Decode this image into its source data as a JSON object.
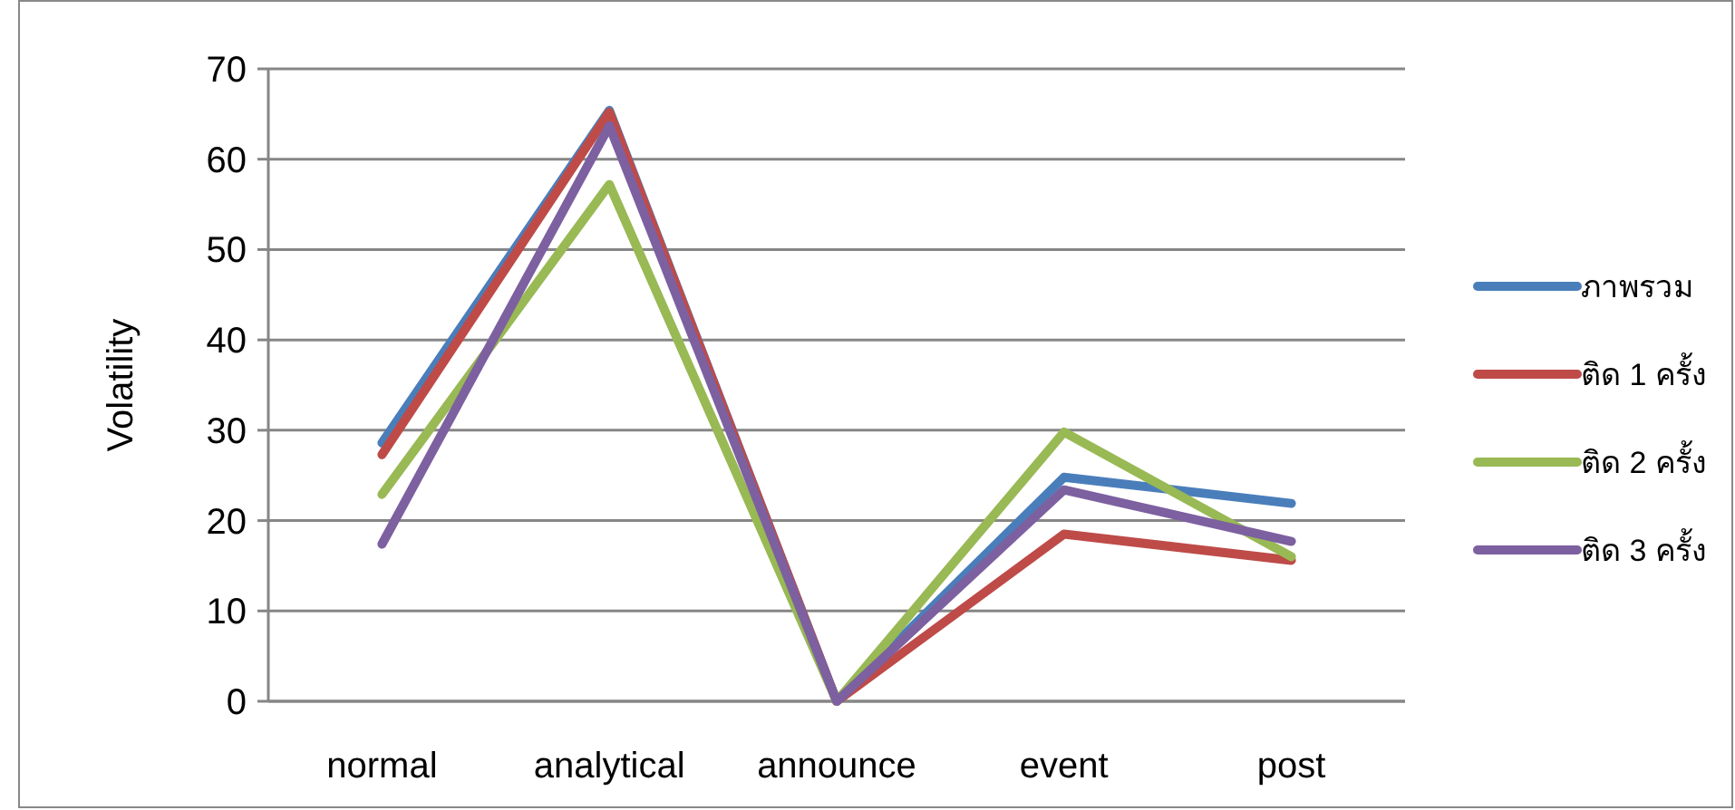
{
  "chart_data": {
    "type": "line",
    "ylabel": "Volatility",
    "categories": [
      "normal",
      "analytical",
      "announce",
      "event",
      "post"
    ],
    "series": [
      {
        "name": "ภาพรวม",
        "color": "#4a7ebb",
        "values": [
          28.6,
          65.4,
          0,
          24.8,
          21.9
        ]
      },
      {
        "name": "ติด 1 ครั้ง",
        "color": "#be4b48",
        "values": [
          27.3,
          65.2,
          0,
          18.5,
          15.6
        ]
      },
      {
        "name": "ติด 2 ครั้ง",
        "color": "#98b954",
        "values": [
          22.9,
          57.2,
          0,
          29.8,
          16.0
        ]
      },
      {
        "name": "ติด 3 ครั้ง",
        "color": "#7d60a0",
        "values": [
          17.4,
          63.7,
          0,
          23.4,
          17.7
        ]
      }
    ],
    "ylim": [
      0,
      70
    ],
    "yticks": [
      0,
      10,
      20,
      30,
      40,
      50,
      60,
      70
    ],
    "grid": "y",
    "legend": "right"
  }
}
